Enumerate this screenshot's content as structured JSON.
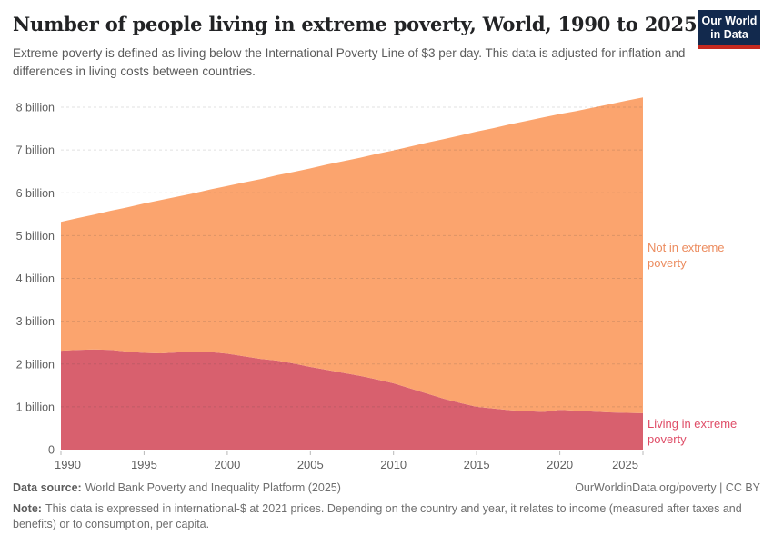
{
  "header": {
    "title": "Number of people living in extreme poverty, World, 1990 to 2025",
    "subtitle": "Extreme poverty is defined as living below the International Poverty Line of $3 per day. This data is adjusted for inflation and differences in living costs between countries.",
    "logo": {
      "line1": "Our World",
      "line2": "in Data",
      "bg_color": "#12294d",
      "bar_color": "#c5291f"
    }
  },
  "chart_data": {
    "type": "area",
    "stacked": true,
    "title": "Number of people living in extreme poverty, World, 1990 to 2025",
    "unit": "people",
    "grid": "horizontal-dashed",
    "legend_position": "right-edge-labels",
    "xlim": [
      1990,
      2025
    ],
    "ylim": [
      0,
      8.5
    ],
    "x": [
      1990,
      1991,
      1992,
      1993,
      1994,
      1995,
      1996,
      1997,
      1998,
      1999,
      2000,
      2001,
      2002,
      2003,
      2004,
      2005,
      2006,
      2007,
      2008,
      2009,
      2010,
      2011,
      2012,
      2013,
      2014,
      2015,
      2016,
      2017,
      2018,
      2019,
      2020,
      2021,
      2022,
      2023,
      2024,
      2025
    ],
    "series": [
      {
        "name": "Living in extreme poverty",
        "color": "#d8606e",
        "label_color": "#df4d67",
        "values_billions": [
          2.31,
          2.33,
          2.34,
          2.33,
          2.29,
          2.26,
          2.25,
          2.27,
          2.29,
          2.28,
          2.24,
          2.18,
          2.12,
          2.08,
          2.01,
          1.93,
          1.86,
          1.79,
          1.72,
          1.64,
          1.55,
          1.43,
          1.31,
          1.19,
          1.09,
          1.0,
          0.96,
          0.92,
          0.9,
          0.88,
          0.93,
          0.91,
          0.89,
          0.87,
          0.86,
          0.85
        ]
      },
      {
        "name": "Not in extreme poverty",
        "color": "#fba46e",
        "label_color": "#ec8c5f",
        "values_billions": [
          3.01,
          3.08,
          3.15,
          3.25,
          3.37,
          3.49,
          3.58,
          3.64,
          3.7,
          3.8,
          3.92,
          4.06,
          4.2,
          4.33,
          4.48,
          4.64,
          4.8,
          4.95,
          5.1,
          5.27,
          5.44,
          5.65,
          5.86,
          6.06,
          6.25,
          6.43,
          6.55,
          6.68,
          6.78,
          6.88,
          6.91,
          7.0,
          7.1,
          7.2,
          7.29,
          7.38
        ]
      }
    ],
    "yticks": [
      {
        "value": 0,
        "label": "0"
      },
      {
        "value": 1,
        "label": "1 billion"
      },
      {
        "value": 2,
        "label": "2 billion"
      },
      {
        "value": 3,
        "label": "3 billion"
      },
      {
        "value": 4,
        "label": "4 billion"
      },
      {
        "value": 5,
        "label": "5 billion"
      },
      {
        "value": 6,
        "label": "6 billion"
      },
      {
        "value": 7,
        "label": "7 billion"
      },
      {
        "value": 8,
        "label": "8 billion"
      }
    ],
    "xticks": [
      1990,
      1995,
      2000,
      2005,
      2010,
      2015,
      2020,
      2025
    ]
  },
  "footer": {
    "datasource_label": "Data source:",
    "datasource_text": "World Bank Poverty and Inequality Platform (2025)",
    "rights": "OurWorldinData.org/poverty | CC BY",
    "note_label": "Note:",
    "note_text": "This data is expressed in international-$ at 2021 prices. Depending on the country and year, it relates to income (measured after taxes and benefits) or to consumption, per capita."
  }
}
